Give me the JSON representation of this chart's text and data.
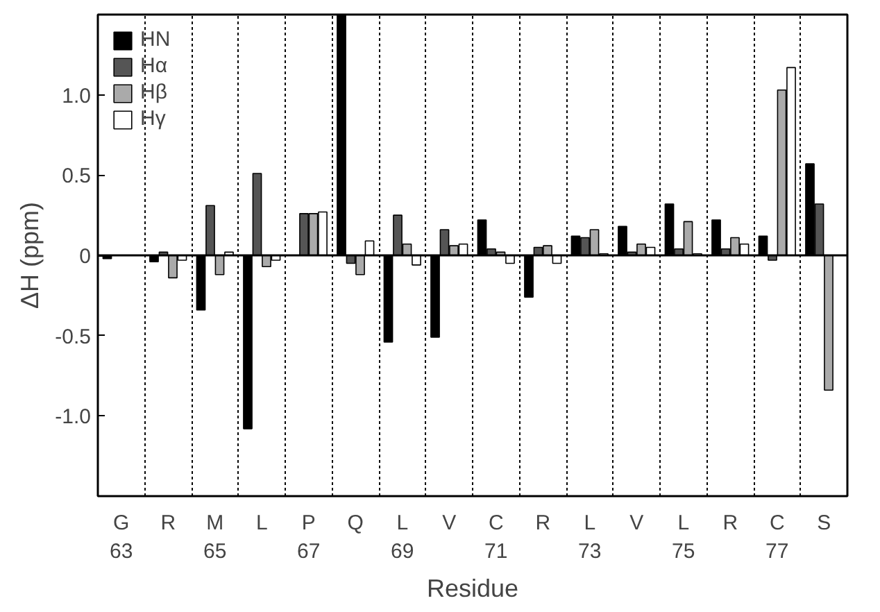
{
  "chart_data": {
    "type": "bar",
    "xlabel": "Residue",
    "ylabel": "ΔH (ppm)",
    "categories": [
      "G\n63",
      "R",
      "M\n65",
      "L",
      "P\n67",
      "Q",
      "L\n69",
      "V",
      "C\n71",
      "R",
      "L\n73",
      "V",
      "L\n75",
      "R",
      "C\n77",
      "S"
    ],
    "series": [
      {
        "name": "HN",
        "color": "#000000",
        "values": [
          -0.02,
          -0.04,
          -0.34,
          -1.08,
          null,
          1.5,
          -0.54,
          -0.51,
          0.22,
          -0.26,
          0.12,
          0.18,
          0.32,
          0.22,
          0.12,
          0.57
        ]
      },
      {
        "name": "Hα",
        "color": "#555555",
        "values": [
          null,
          0.02,
          0.31,
          0.51,
          0.26,
          -0.05,
          0.25,
          0.16,
          0.04,
          0.05,
          0.11,
          0.02,
          0.04,
          0.04,
          -0.03,
          0.32
        ]
      },
      {
        "name": "Hβ",
        "color": "#aaaaaa",
        "values": [
          null,
          -0.14,
          -0.12,
          -0.07,
          0.26,
          -0.12,
          0.07,
          0.06,
          0.02,
          0.06,
          0.16,
          0.07,
          0.21,
          0.11,
          1.03,
          -0.84
        ]
      },
      {
        "name": "Hγ",
        "color": "#ffffff",
        "values": [
          null,
          -0.03,
          0.02,
          -0.03,
          0.27,
          0.09,
          -0.06,
          0.07,
          -0.05,
          -0.05,
          0.01,
          0.05,
          0.01,
          0.07,
          1.17,
          null
        ]
      }
    ],
    "ylim": [
      -1.5,
      1.5
    ],
    "yticks": [
      {
        "value": -1.0,
        "label": "-1.0"
      },
      {
        "value": -0.5,
        "label": "-0.5"
      },
      0,
      0.5,
      {
        "value": 1.0,
        "label": "1.0"
      }
    ],
    "ref_lines": [
      {
        "axis": "y",
        "value": 0,
        "color": "#000000"
      }
    ],
    "grid": "x",
    "legend": "top left"
  }
}
